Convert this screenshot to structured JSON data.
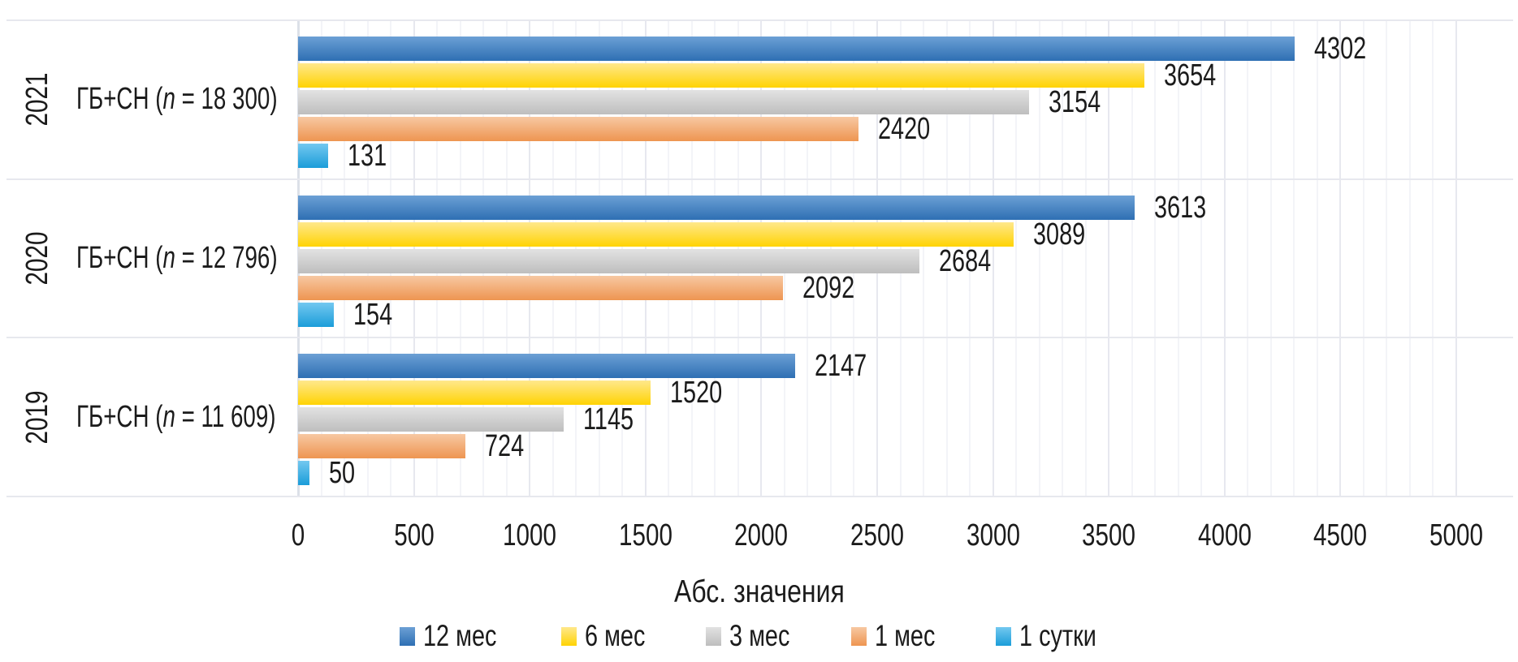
{
  "chart_data": {
    "type": "bar",
    "orientation": "horizontal",
    "title": "",
    "xlabel": "Абс. значения",
    "xlim": [
      0,
      5000
    ],
    "xticks": [
      0,
      500,
      1000,
      1500,
      2000,
      2500,
      3000,
      3500,
      4000,
      4500,
      5000
    ],
    "minor_tick_step": 100,
    "grid": true,
    "legend_position": "bottom",
    "categories": [
      {
        "year": "2021",
        "label_prefix": "ГБ+СН (",
        "label_n": "n",
        "label_suffix": " = 18 300)"
      },
      {
        "year": "2020",
        "label_prefix": "ГБ+СН (",
        "label_n": "n",
        "label_suffix": " = 12 796)"
      },
      {
        "year": "2019",
        "label_prefix": "ГБ+СН (",
        "label_n": "n",
        "label_suffix": " = 11 609)"
      }
    ],
    "series": [
      {
        "name": "12 мес",
        "gradient_top": "#6CA0D5",
        "gradient_bottom": "#2E6FB3",
        "values": [
          4302,
          3613,
          2147
        ]
      },
      {
        "name": "6 мес",
        "gradient_top": "#FFE88C",
        "gradient_bottom": "#FFD303",
        "values": [
          3654,
          3089,
          1520
        ]
      },
      {
        "name": "3 мес",
        "gradient_top": "#E2E2E2",
        "gradient_bottom": "#BEBEBE",
        "values": [
          3154,
          2684,
          1145
        ]
      },
      {
        "name": "1 мес",
        "gradient_top": "#F7C8A2",
        "gradient_bottom": "#EE9551",
        "values": [
          2420,
          2092,
          724
        ]
      },
      {
        "name": "1 сутки",
        "gradient_top": "#73C8F0",
        "gradient_bottom": "#1B9DD9",
        "values": [
          131,
          154,
          50
        ]
      }
    ],
    "colors": {
      "text": "#1B1B1B",
      "grid_major": "#E7E8EF",
      "grid_minor": "#F3F4F8",
      "separator": "#E7E8EE",
      "axis_line": "#DCE0E8",
      "background": "#FFFFFF"
    }
  }
}
